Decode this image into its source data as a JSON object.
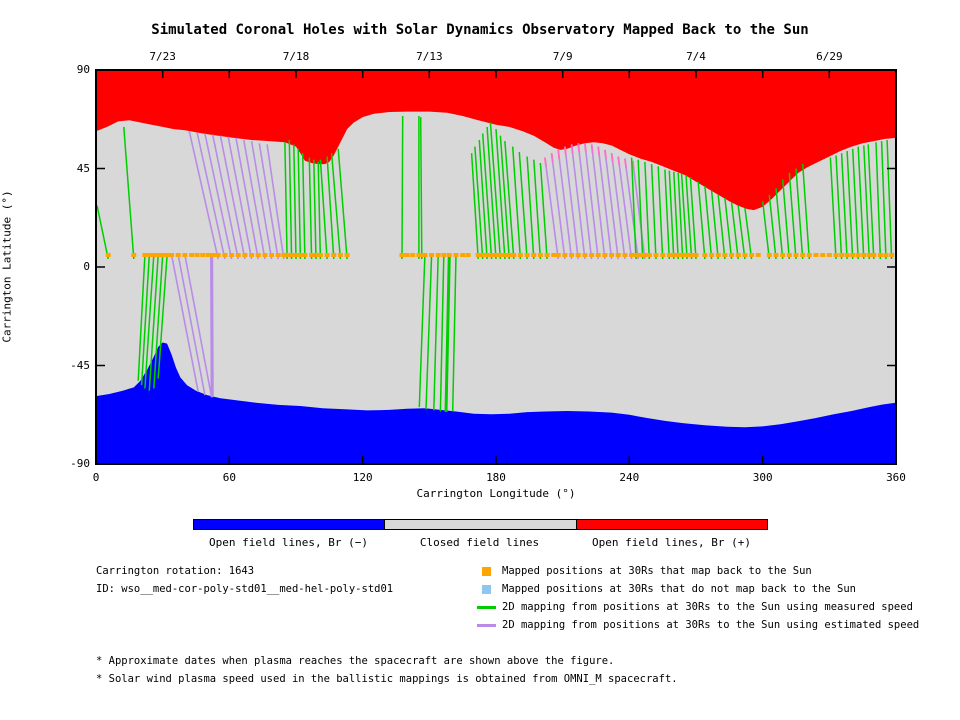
{
  "title": "Simulated Coronal Holes with Solar Dynamics Observatory Mapped Back to the Sun",
  "colors": {
    "red": "#ff0000",
    "blue": "#0000ff",
    "gray": "#d8d8d8",
    "green": "#00ce00",
    "purple": "#b98ce8",
    "pink": "#ff6ec7",
    "orange": "#ffa500",
    "skyblue": "#8ec6f0",
    "frame": "#000000"
  },
  "top_axis": {
    "tick_lons": [
      30,
      60,
      90,
      120,
      150,
      180,
      210,
      240,
      270,
      300,
      330
    ],
    "date_labels": [
      {
        "lon": 30,
        "text": "7/23"
      },
      {
        "lon": 90,
        "text": "7/18"
      },
      {
        "lon": 150,
        "text": "7/13"
      },
      {
        "lon": 210,
        "text": "7/9"
      },
      {
        "lon": 270,
        "text": "7/4"
      },
      {
        "lon": 330,
        "text": "6/29"
      }
    ]
  },
  "x_axis": {
    "label": "Carrington Longitude (°)",
    "ticks": [
      {
        "lon": 0,
        "text": "0"
      },
      {
        "lon": 60,
        "text": "60"
      },
      {
        "lon": 120,
        "text": "120"
      },
      {
        "lon": 180,
        "text": "180"
      },
      {
        "lon": 240,
        "text": "240"
      },
      {
        "lon": 300,
        "text": "300"
      },
      {
        "lon": 360,
        "text": "360"
      }
    ]
  },
  "y_axis": {
    "label": "Carrington Latitude (°)",
    "ticks": [
      {
        "lat": 90,
        "text": "90"
      },
      {
        "lat": 45,
        "text": "45"
      },
      {
        "lat": 0,
        "text": "0"
      },
      {
        "lat": -45,
        "text": "-45"
      },
      {
        "lat": -90,
        "text": "-90"
      }
    ]
  },
  "legend_bar": {
    "segments": [
      {
        "label": "Open field lines, Br (−)",
        "color": "#0000ff"
      },
      {
        "label": "Closed field lines",
        "color": "#d8d8d8"
      },
      {
        "label": "Open field lines, Br (+)",
        "color": "#ff0000"
      }
    ]
  },
  "info": {
    "rotation": "Carrington rotation: 1643",
    "id": "ID: wso__med-cor-poly-std01__med-hel-poly-std01"
  },
  "legend_items": [
    {
      "swatch": "square",
      "color": "#ffa500",
      "label": "Mapped positions at 30Rs that map back to the Sun"
    },
    {
      "swatch": "square",
      "color": "#8ec6f0",
      "label": "Mapped positions at 30Rs that do not map back to the Sun"
    },
    {
      "swatch": "line",
      "color": "#00ce00",
      "label": "2D mapping from positions at 30Rs to the Sun using measured speed"
    },
    {
      "swatch": "line",
      "color": "#b98ce8",
      "label": "2D mapping from positions at 30Rs to the Sun using estimated speed"
    }
  ],
  "footnotes": [
    "* Approximate dates when plasma reaches the spacecraft are shown above the figure.",
    "* Solar wind plasma speed used in the ballistic mappings is obtained from OMNI_M spacecraft."
  ],
  "chart_data": {
    "type": "area",
    "xlabel": "Carrington Longitude (°)",
    "ylabel": "Carrington Latitude (°)",
    "xlim": [
      0,
      360
    ],
    "ylim": [
      -90,
      90
    ],
    "x_tick_step_bottom": 60,
    "x_tick_step_top": 30,
    "y_tick_step": 45,
    "dot_lat": 5.5,
    "regions": {
      "top_open_field_br_plus_color": "#ff0000",
      "bottom_open_field_br_minus_color": "#0000ff",
      "closed_field_color": "#d8d8d8"
    },
    "red_boundary": [
      [
        0,
        62
      ],
      [
        5,
        64
      ],
      [
        10,
        66.5
      ],
      [
        15,
        67
      ],
      [
        20,
        66
      ],
      [
        25,
        65
      ],
      [
        30,
        64
      ],
      [
        35,
        63
      ],
      [
        40,
        62.5
      ],
      [
        48,
        61
      ],
      [
        55,
        60
      ],
      [
        62,
        59
      ],
      [
        70,
        58
      ],
      [
        78,
        57.5
      ],
      [
        85,
        57
      ],
      [
        90,
        55
      ],
      [
        92,
        52
      ],
      [
        94,
        48.5
      ],
      [
        97,
        47.5
      ],
      [
        100,
        47
      ],
      [
        103,
        47
      ],
      [
        105,
        48
      ],
      [
        107,
        51
      ],
      [
        109,
        55
      ],
      [
        111,
        59
      ],
      [
        113,
        63
      ],
      [
        116,
        66
      ],
      [
        120,
        68.5
      ],
      [
        125,
        70
      ],
      [
        132,
        70.8
      ],
      [
        140,
        71
      ],
      [
        150,
        71
      ],
      [
        158,
        70.5
      ],
      [
        165,
        69
      ],
      [
        172,
        67
      ],
      [
        180,
        65
      ],
      [
        186,
        64
      ],
      [
        192,
        62
      ],
      [
        197,
        60
      ],
      [
        202,
        57
      ],
      [
        206,
        54.5
      ],
      [
        209,
        53.5
      ],
      [
        212,
        54
      ],
      [
        216,
        55.5
      ],
      [
        220,
        56.5
      ],
      [
        224,
        57
      ],
      [
        228,
        56.5
      ],
      [
        232,
        55.5
      ],
      [
        236,
        53.5
      ],
      [
        240,
        51.5
      ],
      [
        245,
        49.5
      ],
      [
        250,
        48
      ],
      [
        255,
        46
      ],
      [
        260,
        44
      ],
      [
        265,
        42
      ],
      [
        270,
        39
      ],
      [
        275,
        36
      ],
      [
        280,
        33
      ],
      [
        285,
        30
      ],
      [
        289,
        28
      ],
      [
        293,
        26.5
      ],
      [
        296,
        26
      ],
      [
        300,
        27.5
      ],
      [
        304,
        31
      ],
      [
        308,
        35
      ],
      [
        312,
        39
      ],
      [
        316,
        43
      ],
      [
        320,
        45.5
      ],
      [
        325,
        48
      ],
      [
        330,
        50.5
      ],
      [
        335,
        53
      ],
      [
        340,
        55
      ],
      [
        345,
        56.5
      ],
      [
        350,
        57.5
      ],
      [
        355,
        58.5
      ],
      [
        360,
        59
      ]
    ],
    "blue_boundary": [
      [
        0,
        -59
      ],
      [
        6,
        -58
      ],
      [
        12,
        -56.5
      ],
      [
        17,
        -55
      ],
      [
        20,
        -52
      ],
      [
        23,
        -47
      ],
      [
        26,
        -41
      ],
      [
        28,
        -36.5
      ],
      [
        30,
        -34.5
      ],
      [
        32,
        -35
      ],
      [
        34,
        -40
      ],
      [
        36,
        -46
      ],
      [
        38,
        -50.5
      ],
      [
        41,
        -54
      ],
      [
        45,
        -56.5
      ],
      [
        50,
        -58.5
      ],
      [
        56,
        -60
      ],
      [
        64,
        -61
      ],
      [
        72,
        -62
      ],
      [
        82,
        -63
      ],
      [
        92,
        -63.5
      ],
      [
        102,
        -64.5
      ],
      [
        112,
        -65
      ],
      [
        122,
        -65.5
      ],
      [
        132,
        -65.3
      ],
      [
        140,
        -64.8
      ],
      [
        148,
        -64.5
      ],
      [
        155,
        -65.3
      ],
      [
        162,
        -66
      ],
      [
        170,
        -67
      ],
      [
        178,
        -67.3
      ],
      [
        186,
        -67
      ],
      [
        194,
        -66.3
      ],
      [
        202,
        -66
      ],
      [
        212,
        -65.8
      ],
      [
        222,
        -66
      ],
      [
        232,
        -66.5
      ],
      [
        240,
        -67.5
      ],
      [
        248,
        -69
      ],
      [
        256,
        -70.3
      ],
      [
        264,
        -71.3
      ],
      [
        274,
        -72.3
      ],
      [
        284,
        -73
      ],
      [
        292,
        -73.2
      ],
      [
        300,
        -72.8
      ],
      [
        308,
        -71.8
      ],
      [
        316,
        -70.5
      ],
      [
        324,
        -69
      ],
      [
        332,
        -67.3
      ],
      [
        340,
        -65.8
      ],
      [
        348,
        -64
      ],
      [
        354,
        -62.8
      ],
      [
        360,
        -62
      ]
    ],
    "green_lines_up": [
      [
        5.5,
        0.5,
        28
      ],
      [
        17,
        12.5,
        64
      ],
      [
        86,
        85,
        57
      ],
      [
        88,
        87,
        58
      ],
      [
        90,
        89,
        56
      ],
      [
        92,
        91,
        54
      ],
      [
        94,
        93,
        52
      ],
      [
        97,
        96,
        50
      ],
      [
        99,
        98,
        49
      ],
      [
        101,
        100,
        48
      ],
      [
        104,
        101,
        49
      ],
      [
        107,
        104,
        50.5
      ],
      [
        110,
        106,
        52
      ],
      [
        113,
        109,
        54
      ],
      [
        137.7,
        138,
        69
      ],
      [
        145.3,
        145.3,
        69
      ],
      [
        146.6,
        146.1,
        68.5
      ],
      [
        172,
        169,
        52
      ],
      [
        174,
        170.5,
        55
      ],
      [
        176,
        172.5,
        58
      ],
      [
        178,
        174,
        61
      ],
      [
        180,
        176,
        64
      ],
      [
        182,
        177.5,
        66
      ],
      [
        184,
        180,
        63
      ],
      [
        186,
        182,
        60
      ],
      [
        188,
        184,
        57.5
      ],
      [
        191,
        187.5,
        55
      ],
      [
        194,
        190.5,
        52.5
      ],
      [
        197,
        194,
        50.5
      ],
      [
        200,
        197,
        49
      ],
      [
        203,
        200,
        47.5
      ],
      [
        243,
        241,
        50
      ],
      [
        246,
        244,
        49
      ],
      [
        249,
        247,
        48
      ],
      [
        252,
        250,
        47
      ],
      [
        255,
        253,
        46
      ],
      [
        258,
        256,
        44.5
      ],
      [
        260,
        258,
        44
      ],
      [
        262,
        260,
        43.5
      ],
      [
        264,
        262,
        43
      ],
      [
        266,
        263.5,
        42.5
      ],
      [
        268,
        265.5,
        42
      ],
      [
        270,
        267.5,
        41
      ],
      [
        274,
        271,
        39
      ],
      [
        277,
        274,
        37
      ],
      [
        280,
        277,
        35
      ],
      [
        283,
        280,
        33
      ],
      [
        286,
        283,
        31.5
      ],
      [
        289,
        286,
        29.5
      ],
      [
        292,
        289,
        28
      ],
      [
        295,
        292,
        27
      ],
      [
        303,
        300,
        30
      ],
      [
        306,
        303,
        33
      ],
      [
        309,
        306,
        36
      ],
      [
        312,
        309,
        40
      ],
      [
        315,
        312,
        43
      ],
      [
        318,
        315,
        45
      ],
      [
        321,
        318,
        47
      ],
      [
        333,
        330.5,
        50
      ],
      [
        335.5,
        333,
        51
      ],
      [
        338,
        335.5,
        52
      ],
      [
        340.5,
        338,
        53
      ],
      [
        343,
        340.5,
        54
      ],
      [
        345.5,
        343,
        55
      ],
      [
        348,
        345.5,
        55.5
      ],
      [
        350,
        347.5,
        56
      ],
      [
        353,
        351,
        57
      ],
      [
        355.5,
        353.5,
        57.5
      ],
      [
        358,
        356,
        58
      ]
    ],
    "purple_lines_up": [
      [
        55,
        42,
        62
      ],
      [
        58,
        45.5,
        61.5
      ],
      [
        61,
        49,
        61
      ],
      [
        64,
        52.5,
        60.5
      ],
      [
        67,
        56,
        60
      ],
      [
        70,
        59.5,
        59.5
      ],
      [
        73,
        63,
        59
      ],
      [
        76,
        66.5,
        58
      ],
      [
        79,
        70,
        57.5
      ],
      [
        82,
        73.5,
        56.5
      ],
      [
        84.5,
        77,
        56
      ],
      [
        208,
        202,
        50
      ],
      [
        211,
        205,
        52
      ],
      [
        214,
        208,
        53.5
      ],
      [
        217,
        211,
        55
      ],
      [
        220,
        214,
        56
      ],
      [
        223,
        217,
        56.5
      ],
      [
        226,
        220,
        56.5
      ],
      [
        229,
        223,
        56
      ],
      [
        232,
        226,
        55
      ],
      [
        235,
        229,
        53.5
      ],
      [
        238,
        232,
        52
      ],
      [
        241,
        235,
        50.5
      ],
      [
        244,
        238,
        49.5
      ],
      [
        247,
        241.5,
        48.5
      ]
    ],
    "green_lines_down": [
      [
        22,
        19,
        -52
      ],
      [
        24,
        20.5,
        -54
      ],
      [
        26,
        22,
        -55.5
      ],
      [
        28,
        24,
        -56.5
      ],
      [
        30,
        26,
        -55.5
      ],
      [
        32,
        28,
        -51
      ],
      [
        148,
        145.5,
        -64
      ],
      [
        151,
        148.5,
        -65
      ],
      [
        154,
        152,
        -65.5
      ],
      [
        156.5,
        155,
        -66
      ],
      [
        159,
        157.5,
        -66.2,
        3
      ],
      [
        162,
        160.5,
        -66
      ]
    ],
    "purple_lines_down": [
      [
        34,
        46,
        -57
      ],
      [
        37,
        49,
        -58.5
      ],
      [
        40,
        52,
        -59.5
      ],
      [
        52,
        52.3,
        -59.5,
        3.2
      ]
    ],
    "extra_dot_lons": [
      43,
      45.5,
      48,
      50.5,
      53,
      140,
      142.5,
      165,
      167.5,
      206,
      298,
      324,
      327,
      330
    ]
  }
}
